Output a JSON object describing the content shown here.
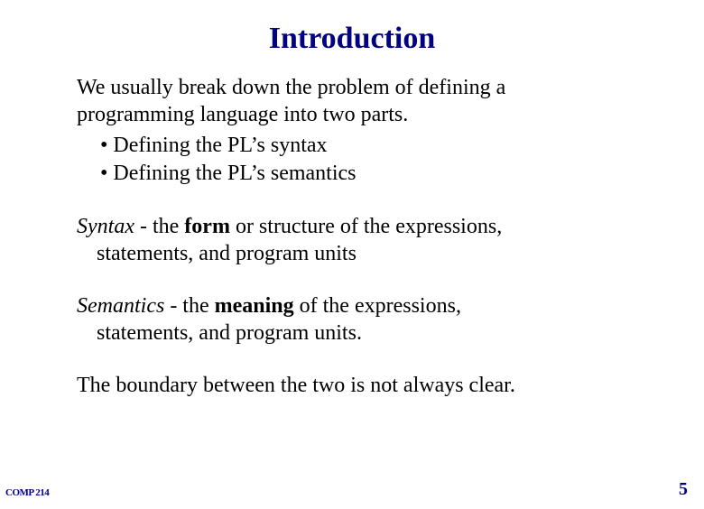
{
  "slide": {
    "title": "Introduction",
    "para1_line1": "We usually break down the problem of defining a",
    "para1_line2": "programming language into two parts.",
    "bullet1": "• Defining the PL’s syntax",
    "bullet2": "• Defining the PL’s semantics",
    "syntax_term": "Syntax",
    "syntax_sep": " - the ",
    "syntax_bold": "form",
    "syntax_rest1": " or structure of the expressions,",
    "syntax_cont": "statements, and program units",
    "semantics_term": "Semantics",
    "semantics_sep": " - the ",
    "semantics_bold": "meaning",
    "semantics_rest1": " of the expressions,",
    "semantics_cont": "statements, and program units.",
    "boundary": "The boundary between the two is not always clear.",
    "footer_left": "COMP 214",
    "page_number": "5"
  },
  "style": {
    "title_color": "#000080",
    "title_fontsize": 34,
    "body_fontsize": 24,
    "footer_color": "#000080",
    "footer_left_fontsize": 11,
    "footer_right_fontsize": 20,
    "background": "#ffffff",
    "text_color": "#000000",
    "font_family": "Times New Roman"
  }
}
